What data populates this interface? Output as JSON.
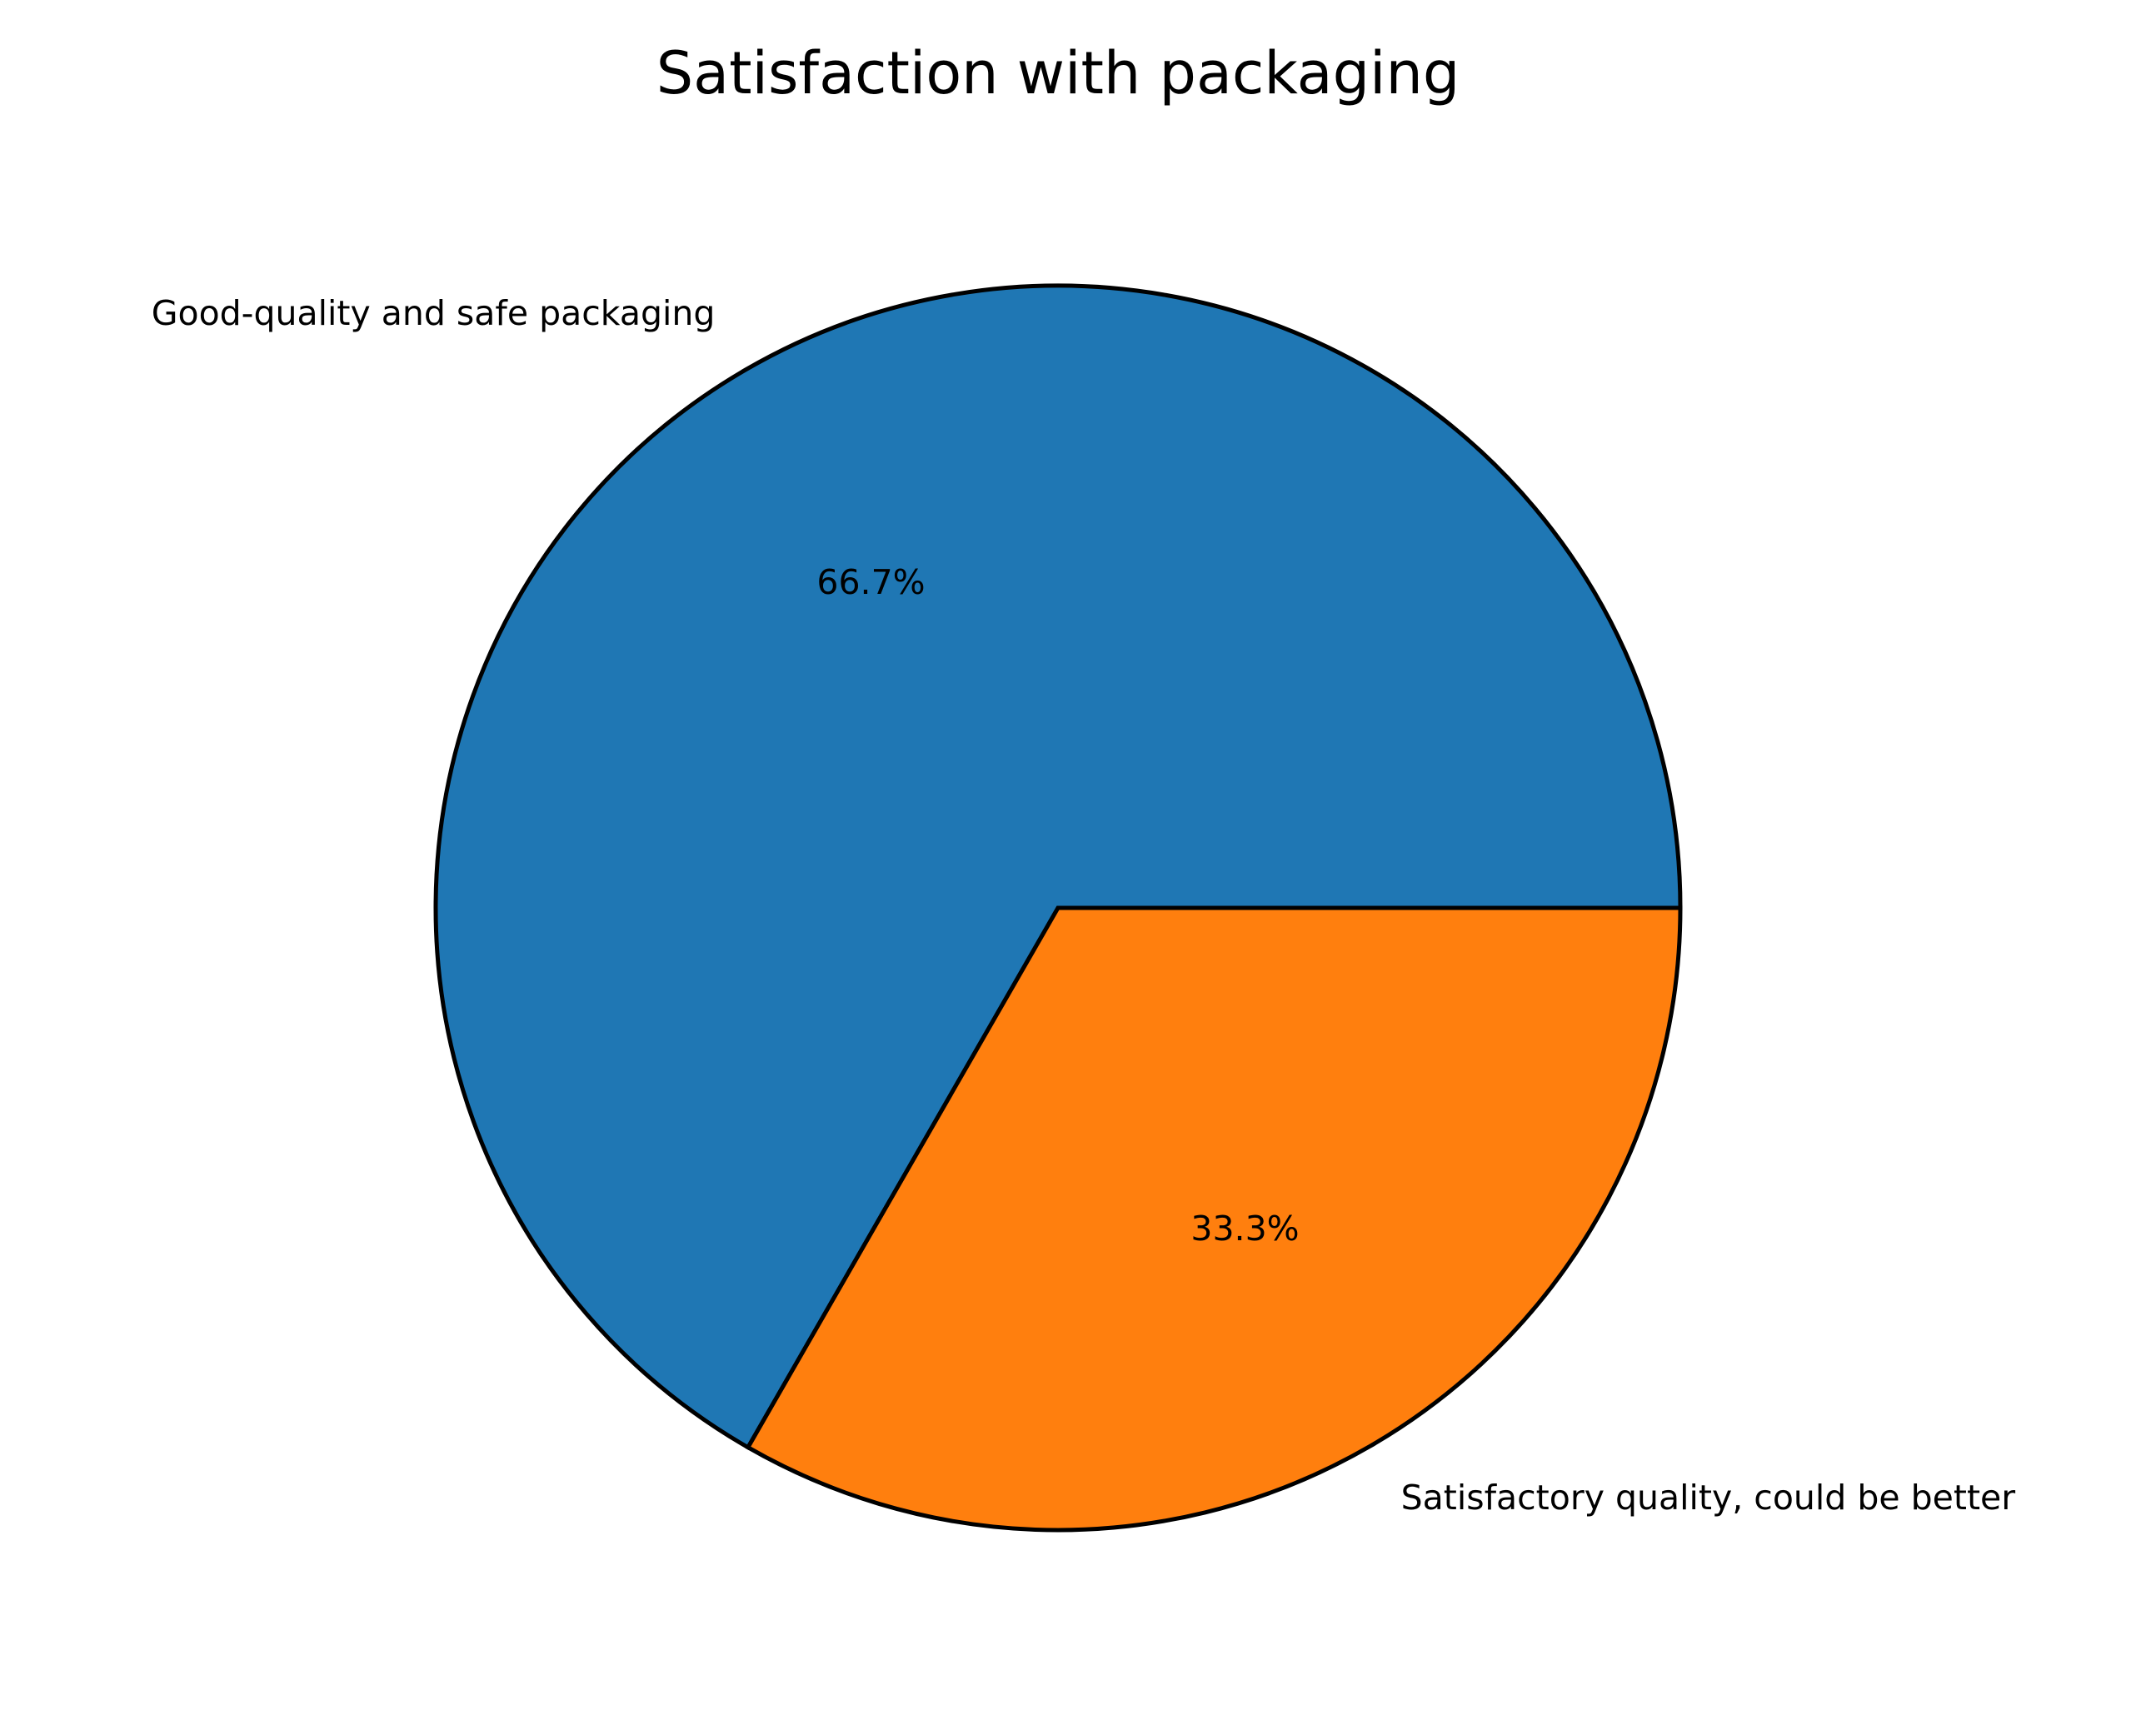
{
  "chart_data": {
    "type": "pie",
    "title": "Satisfaction with packaging",
    "slices": [
      {
        "label": "Good-quality and safe packaging",
        "value": 66.7,
        "pct_label": "66.7%",
        "color": "#1f77b4"
      },
      {
        "label": "Satisfactory quality, could be better",
        "value": 33.3,
        "pct_label": "33.3%",
        "color": "#ff7f0e"
      }
    ],
    "start_angle_deg": 0,
    "direction": "counterclockwise",
    "edge_color": "#000000"
  }
}
